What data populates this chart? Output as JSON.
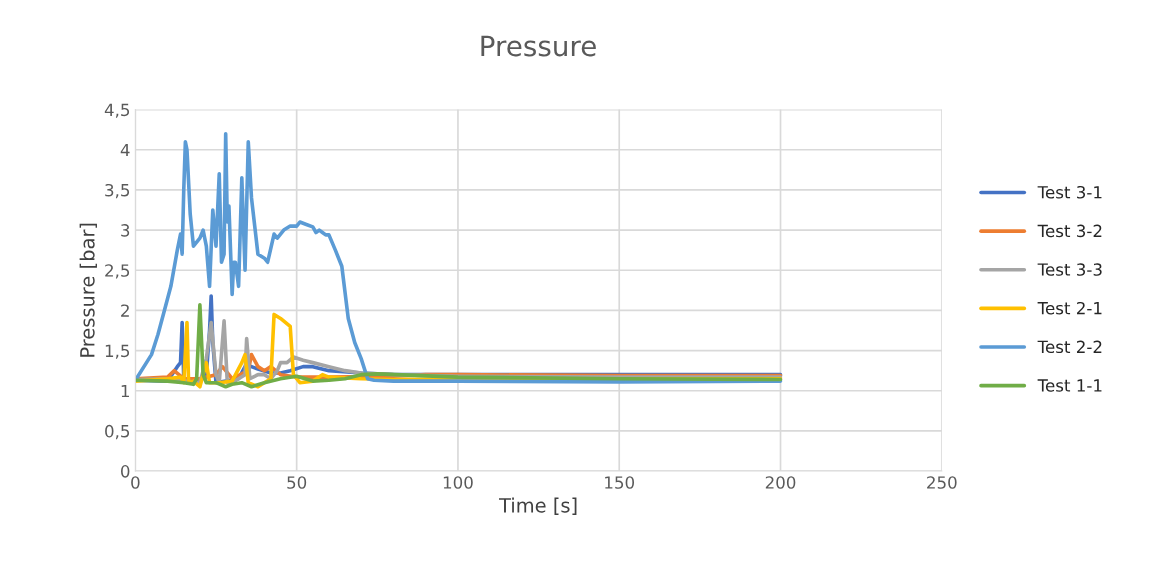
{
  "chart_data": {
    "type": "line",
    "title": "Pressure",
    "xlabel": "Time [s]",
    "ylabel": "Pressure [bar]",
    "xlim": [
      0,
      250
    ],
    "xticks": [
      0,
      50,
      100,
      150,
      200,
      250
    ],
    "ylim": [
      0,
      4.5
    ],
    "yticks": [
      0,
      {
        "value": 0.5,
        "label": "0,5"
      },
      1,
      {
        "value": 1.5,
        "label": "1,5"
      },
      2,
      {
        "value": 2.5,
        "label": "2,5"
      },
      3,
      {
        "value": 3.5,
        "label": "3,5"
      },
      4,
      {
        "value": 4.5,
        "label": "4,5"
      }
    ],
    "grid": true,
    "legend": "right",
    "marker": "none",
    "line_style": "solid",
    "series": [
      {
        "name": "Test 3-1",
        "color": "#4472c4",
        "x": [
          0,
          10,
          13,
          14,
          14.5,
          15,
          17,
          20,
          22,
          23,
          23.5,
          24,
          25,
          28,
          32,
          34,
          36,
          38,
          42,
          45,
          48,
          52,
          55,
          60,
          70,
          80,
          100,
          150,
          200
        ],
        "values": [
          1.13,
          1.12,
          1.3,
          1.35,
          1.85,
          1.15,
          1.1,
          1.12,
          1.2,
          1.75,
          2.18,
          1.6,
          1.1,
          1.12,
          1.15,
          1.3,
          1.3,
          1.27,
          1.22,
          1.22,
          1.25,
          1.3,
          1.3,
          1.25,
          1.22,
          1.2,
          1.2,
          1.2,
          1.2
        ]
      },
      {
        "name": "Test 3-2",
        "color": "#ed7d31",
        "x": [
          0,
          10,
          12,
          15,
          20,
          25,
          27,
          30,
          35,
          36,
          38,
          40,
          42,
          45,
          50,
          60,
          80,
          90,
          100,
          150,
          200
        ],
        "values": [
          1.15,
          1.17,
          1.25,
          1.15,
          1.15,
          1.2,
          1.3,
          1.15,
          1.25,
          1.45,
          1.3,
          1.25,
          1.3,
          1.2,
          1.17,
          1.17,
          1.18,
          1.2,
          1.2,
          1.19,
          1.19
        ]
      },
      {
        "name": "Test 3-3",
        "color": "#a5a5a5",
        "x": [
          0,
          10,
          16,
          20,
          22,
          23.5,
          25,
          26,
          27.5,
          28.5,
          30,
          34,
          34.5,
          35.5,
          38,
          40,
          42,
          44,
          45,
          47,
          49,
          52,
          55,
          60,
          65,
          70,
          80,
          100,
          150,
          200
        ],
        "values": [
          1.14,
          1.15,
          1.12,
          1.1,
          1.4,
          1.85,
          1.2,
          1.1,
          1.87,
          1.1,
          1.1,
          1.2,
          1.65,
          1.15,
          1.2,
          1.2,
          1.15,
          1.25,
          1.35,
          1.35,
          1.42,
          1.38,
          1.35,
          1.3,
          1.25,
          1.22,
          1.2,
          1.18,
          1.17,
          1.17
        ]
      },
      {
        "name": "Test 2-1",
        "color": "#ffc000",
        "x": [
          0,
          10,
          14,
          15,
          16,
          16.5,
          18,
          20,
          22,
          23,
          26,
          30,
          33,
          34,
          35,
          38,
          40,
          42,
          43,
          45,
          48,
          49,
          51,
          55,
          58,
          60,
          70,
          80,
          100,
          150,
          200
        ],
        "values": [
          1.12,
          1.15,
          1.17,
          1.1,
          1.85,
          1.1,
          1.12,
          1.05,
          1.35,
          1.1,
          1.1,
          1.12,
          1.35,
          1.45,
          1.1,
          1.05,
          1.1,
          1.15,
          1.95,
          1.9,
          1.8,
          1.2,
          1.1,
          1.12,
          1.2,
          1.17,
          1.15,
          1.14,
          1.15,
          1.15,
          1.15
        ]
      },
      {
        "name": "Test 2-2",
        "color": "#5b9bd5",
        "x": [
          0,
          5,
          7,
          9,
          11,
          13,
          14,
          14.5,
          15,
          15.5,
          16,
          17,
          18,
          20,
          21,
          22,
          23,
          24,
          25,
          26,
          26.7,
          27.5,
          28,
          28.5,
          29,
          30,
          30.5,
          31,
          32,
          33,
          34,
          35,
          36,
          38,
          40,
          41,
          43,
          44,
          46,
          48,
          50,
          51,
          53,
          55,
          56,
          57,
          58,
          59,
          60,
          62,
          64,
          66,
          68,
          70,
          72,
          74,
          80,
          100,
          150,
          200
        ],
        "values": [
          1.13,
          1.45,
          1.7,
          2.0,
          2.3,
          2.75,
          2.95,
          2.7,
          3.5,
          4.1,
          4.0,
          3.2,
          2.8,
          2.9,
          3.0,
          2.8,
          2.3,
          3.25,
          2.8,
          3.7,
          2.6,
          2.7,
          4.2,
          3.1,
          3.3,
          2.2,
          2.6,
          2.6,
          2.3,
          3.65,
          2.5,
          4.1,
          3.4,
          2.7,
          2.65,
          2.6,
          2.95,
          2.9,
          3.0,
          3.05,
          3.05,
          3.1,
          3.07,
          3.04,
          2.97,
          3.0,
          2.97,
          2.94,
          2.94,
          2.75,
          2.55,
          1.9,
          1.6,
          1.4,
          1.15,
          1.13,
          1.12,
          1.12,
          1.11,
          1.12
        ]
      },
      {
        "name": "Test 1-1",
        "color": "#70ad47",
        "x": [
          0,
          10,
          15,
          18,
          19,
          20,
          21,
          22,
          25,
          28,
          30,
          33,
          36,
          40,
          45,
          50,
          55,
          60,
          65,
          70,
          75,
          100,
          150,
          200
        ],
        "values": [
          1.13,
          1.12,
          1.1,
          1.08,
          1.15,
          2.07,
          1.2,
          1.1,
          1.1,
          1.05,
          1.08,
          1.1,
          1.05,
          1.1,
          1.15,
          1.18,
          1.12,
          1.13,
          1.15,
          1.2,
          1.21,
          1.17,
          1.15,
          1.14
        ]
      }
    ]
  }
}
